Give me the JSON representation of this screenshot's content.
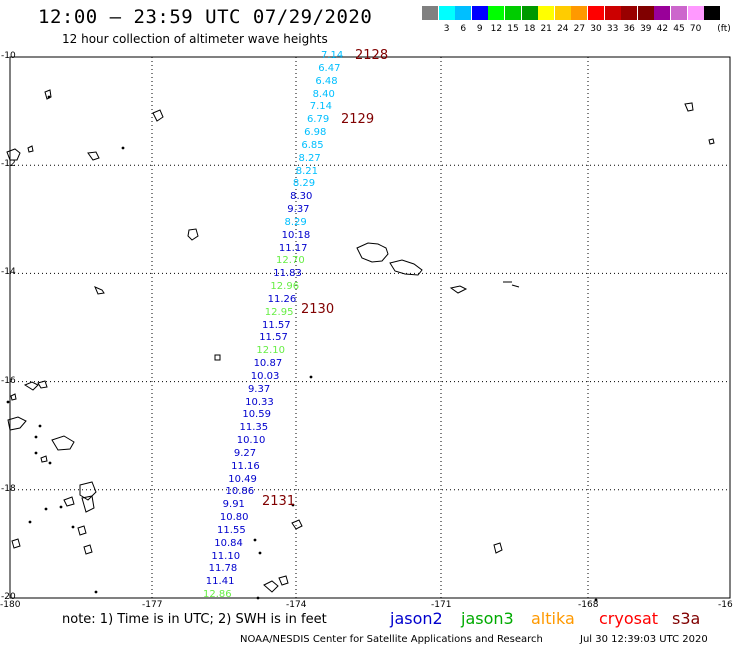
{
  "header": {
    "title": "12:00 – 23:59 UTC 07/29/2020",
    "subtitle": "12 hour collection of altimeter wave heights"
  },
  "colorbar": {
    "unit_label": "(ft)",
    "entries": [
      {
        "label": "",
        "color": "#808080"
      },
      {
        "label": "3",
        "color": "#00ffff"
      },
      {
        "label": "6",
        "color": "#00bfff"
      },
      {
        "label": "9",
        "color": "#0000ff"
      },
      {
        "label": "12",
        "color": "#00ff00"
      },
      {
        "label": "15",
        "color": "#00cc00"
      },
      {
        "label": "18",
        "color": "#009900"
      },
      {
        "label": "21",
        "color": "#ffff00"
      },
      {
        "label": "24",
        "color": "#ffcc00"
      },
      {
        "label": "27",
        "color": "#ff9900"
      },
      {
        "label": "30",
        "color": "#ff0000"
      },
      {
        "label": "33",
        "color": "#cc0000"
      },
      {
        "label": "36",
        "color": "#990000"
      },
      {
        "label": "39",
        "color": "#800000"
      },
      {
        "label": "42",
        "color": "#990099"
      },
      {
        "label": "45",
        "color": "#cc66cc"
      },
      {
        "label": "70",
        "color": "#ff99ff"
      },
      {
        "label": "",
        "color": "#000000"
      }
    ]
  },
  "map": {
    "lat_labels": [
      "-10",
      "-12",
      "-14",
      "-16",
      "-18",
      "-20"
    ],
    "lon_labels": [
      "-180",
      "-177",
      "-174",
      "-171",
      "-168",
      "-16"
    ],
    "observations": [
      {
        "value": "7.14",
        "color": "#00bfff"
      },
      {
        "value": "6.47",
        "color": "#00bfff"
      },
      {
        "value": "6.48",
        "color": "#00bfff"
      },
      {
        "value": "8.40",
        "color": "#00bfff"
      },
      {
        "value": "7.14",
        "color": "#00bfff"
      },
      {
        "value": "6.79",
        "color": "#00bfff"
      },
      {
        "value": "6.98",
        "color": "#00bfff"
      },
      {
        "value": "6.85",
        "color": "#00bfff"
      },
      {
        "value": "8.27",
        "color": "#00bfff"
      },
      {
        "value": "8.21",
        "color": "#00bfff"
      },
      {
        "value": "8.29",
        "color": "#00bfff"
      },
      {
        "value": "8.30",
        "color": "#0000cd"
      },
      {
        "value": "9.37",
        "color": "#0000cd"
      },
      {
        "value": "8.29",
        "color": "#00bfff"
      },
      {
        "value": "10.18",
        "color": "#0000cd"
      },
      {
        "value": "11.17",
        "color": "#0000cd"
      },
      {
        "value": "12.70",
        "color": "#66ee44"
      },
      {
        "value": "11.83",
        "color": "#0000cd"
      },
      {
        "value": "12.96",
        "color": "#66ee44"
      },
      {
        "value": "11.26",
        "color": "#0000cd"
      },
      {
        "value": "12.95",
        "color": "#66ee44"
      },
      {
        "value": "11.57",
        "color": "#0000cd"
      },
      {
        "value": "11.57",
        "color": "#0000cd"
      },
      {
        "value": "12.10",
        "color": "#66ee44"
      },
      {
        "value": "10.87",
        "color": "#0000cd"
      },
      {
        "value": "10.03",
        "color": "#0000cd"
      },
      {
        "value": "9.37",
        "color": "#0000cd"
      },
      {
        "value": "10.33",
        "color": "#0000cd"
      },
      {
        "value": "10.59",
        "color": "#0000cd"
      },
      {
        "value": "11.35",
        "color": "#0000cd"
      },
      {
        "value": "10.10",
        "color": "#0000cd"
      },
      {
        "value": "9.27",
        "color": "#0000cd"
      },
      {
        "value": "11.16",
        "color": "#0000cd"
      },
      {
        "value": "10.49",
        "color": "#0000cd"
      },
      {
        "value": "10.86",
        "color": "#0000cd"
      },
      {
        "value": "9.91",
        "color": "#0000cd"
      },
      {
        "value": "10.80",
        "color": "#0000cd"
      },
      {
        "value": "11.55",
        "color": "#0000cd"
      },
      {
        "value": "10.84",
        "color": "#0000cd"
      },
      {
        "value": "11.10",
        "color": "#0000cd"
      },
      {
        "value": "11.78",
        "color": "#0000cd"
      },
      {
        "value": "11.41",
        "color": "#0000cd"
      },
      {
        "value": "12.86",
        "color": "#66ee44"
      }
    ],
    "time_labels": [
      "2128",
      "2129",
      "2130",
      "2131"
    ]
  },
  "footer": {
    "note": "note:  1) Time is in UTC;  2) SWH is in feet",
    "legend": [
      {
        "label": "jason2",
        "color": "#0000cd"
      },
      {
        "label": "jason3",
        "color": "#00aa00"
      },
      {
        "label": "altika",
        "color": "#ff9900"
      },
      {
        "label": "cryosat",
        "color": "#ff0000"
      },
      {
        "label": "s3a",
        "color": "#800000"
      }
    ],
    "credit": "NOAA/NESDIS Center for Satellite Applications and Research",
    "timestamp": "Jul 30 12:39:03 UTC 2020"
  }
}
